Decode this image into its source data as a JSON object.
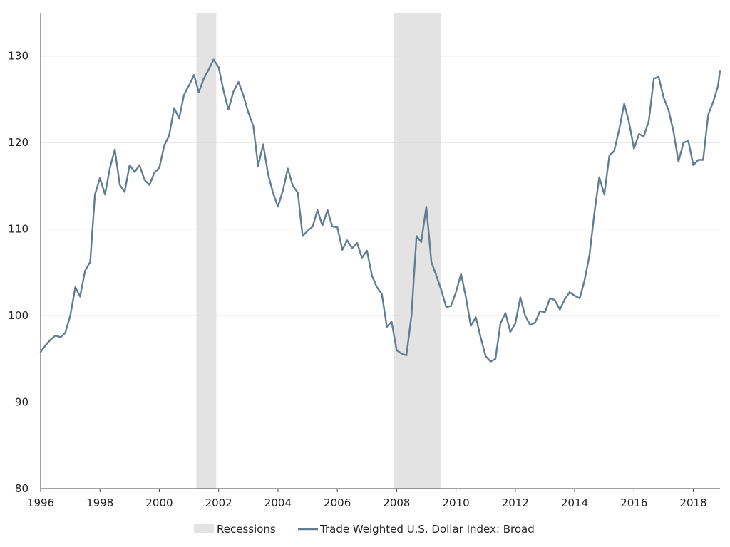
{
  "chart_data": {
    "type": "line",
    "title": "",
    "xlabel": "",
    "ylabel": "",
    "xlim": [
      1996.0,
      2018.9
    ],
    "ylim": [
      80,
      135
    ],
    "x_ticks": [
      1996,
      1998,
      2000,
      2002,
      2004,
      2006,
      2008,
      2010,
      2012,
      2014,
      2016,
      2018
    ],
    "x_tick_labels": [
      "1996",
      "1998",
      "2000",
      "2002",
      "2004",
      "2006",
      "2008",
      "2010",
      "2012",
      "2014",
      "2016",
      "2018"
    ],
    "y_ticks": [
      80,
      90,
      100,
      110,
      120,
      130
    ],
    "y_tick_labels": [
      "80",
      "90",
      "100",
      "110",
      "120",
      "130"
    ],
    "grid": "horizontal",
    "legend_position": "bottom-center",
    "recessions": [
      {
        "start": 2001.25,
        "end": 2001.92
      },
      {
        "start": 2007.92,
        "end": 2009.5
      }
    ],
    "legend": {
      "recessions_label": "Recessions",
      "series_label": "Trade Weighted U.S. Dollar Index: Broad"
    },
    "colors": {
      "line": "#617d93",
      "recession": "#e3e3e3",
      "grid": "#dcdcdc",
      "axis": "#444444"
    },
    "series": [
      {
        "name": "Trade Weighted U.S. Dollar Index: Broad",
        "x": [
          1996.0,
          1996.17,
          1996.33,
          1996.5,
          1996.67,
          1996.83,
          1997.0,
          1997.17,
          1997.33,
          1997.5,
          1997.67,
          1997.83,
          1998.0,
          1998.17,
          1998.33,
          1998.5,
          1998.67,
          1998.83,
          1999.0,
          1999.17,
          1999.33,
          1999.5,
          1999.67,
          1999.83,
          2000.0,
          2000.17,
          2000.33,
          2000.5,
          2000.67,
          2000.83,
          2001.0,
          2001.17,
          2001.33,
          2001.5,
          2001.67,
          2001.83,
          2002.0,
          2002.17,
          2002.33,
          2002.5,
          2002.67,
          2002.83,
          2003.0,
          2003.17,
          2003.33,
          2003.5,
          2003.67,
          2003.83,
          2004.0,
          2004.17,
          2004.33,
          2004.5,
          2004.67,
          2004.83,
          2005.0,
          2005.17,
          2005.33,
          2005.5,
          2005.67,
          2005.83,
          2006.0,
          2006.17,
          2006.33,
          2006.5,
          2006.67,
          2006.83,
          2007.0,
          2007.17,
          2007.33,
          2007.5,
          2007.67,
          2007.83,
          2008.0,
          2008.17,
          2008.33,
          2008.5,
          2008.67,
          2008.83,
          2009.0,
          2009.17,
          2009.33,
          2009.5,
          2009.67,
          2009.83,
          2010.0,
          2010.17,
          2010.33,
          2010.5,
          2010.67,
          2010.83,
          2011.0,
          2011.17,
          2011.33,
          2011.5,
          2011.67,
          2011.83,
          2012.0,
          2012.17,
          2012.33,
          2012.5,
          2012.67,
          2012.83,
          2013.0,
          2013.17,
          2013.33,
          2013.5,
          2013.67,
          2013.83,
          2014.0,
          2014.17,
          2014.33,
          2014.5,
          2014.67,
          2014.83,
          2015.0,
          2015.17,
          2015.33,
          2015.5,
          2015.67,
          2015.83,
          2016.0,
          2016.17,
          2016.33,
          2016.5,
          2016.67,
          2016.83,
          2017.0,
          2017.17,
          2017.33,
          2017.5,
          2017.67,
          2017.83,
          2018.0,
          2018.17,
          2018.33,
          2018.5,
          2018.67,
          2018.83,
          2018.9
        ],
        "values": [
          95.8,
          96.6,
          97.2,
          97.7,
          97.5,
          98.0,
          100.0,
          103.3,
          102.2,
          105.2,
          106.2,
          114.0,
          115.9,
          114.0,
          117.0,
          119.2,
          115.1,
          114.3,
          117.4,
          116.6,
          117.4,
          115.7,
          115.1,
          116.5,
          117.1,
          119.7,
          120.8,
          124.0,
          122.8,
          125.5,
          126.6,
          127.8,
          125.8,
          127.4,
          128.5,
          129.6,
          128.7,
          125.9,
          123.8,
          125.9,
          127.0,
          125.5,
          123.5,
          121.9,
          117.3,
          119.8,
          116.3,
          114.2,
          112.6,
          114.5,
          117.0,
          115.0,
          114.2,
          109.2,
          109.8,
          110.3,
          112.2,
          110.4,
          112.2,
          110.3,
          110.2,
          107.6,
          108.7,
          107.8,
          108.4,
          106.7,
          107.5,
          104.6,
          103.3,
          102.5,
          98.7,
          99.3,
          96.0,
          95.6,
          95.4,
          100.0,
          109.2,
          108.5,
          112.6,
          106.2,
          104.7,
          103.0,
          101.0,
          101.1,
          102.7,
          104.8,
          102.2,
          98.8,
          99.8,
          97.5,
          95.3,
          94.7,
          95.0,
          99.1,
          100.3,
          98.1,
          99.1,
          102.1,
          100.0,
          98.9,
          99.2,
          100.5,
          100.4,
          102.0,
          101.8,
          100.7,
          101.9,
          102.7,
          102.3,
          102.0,
          104.0,
          107.0,
          112.0,
          116.0,
          114.0,
          118.5,
          119.0,
          121.5,
          124.5,
          122.4,
          119.3,
          121.0,
          120.7,
          122.5,
          127.4,
          127.6,
          125.2,
          123.7,
          121.3,
          117.8,
          120.0,
          120.2,
          117.4,
          118.0,
          118.0,
          123.2,
          124.7,
          126.5,
          128.3
        ]
      }
    ]
  }
}
